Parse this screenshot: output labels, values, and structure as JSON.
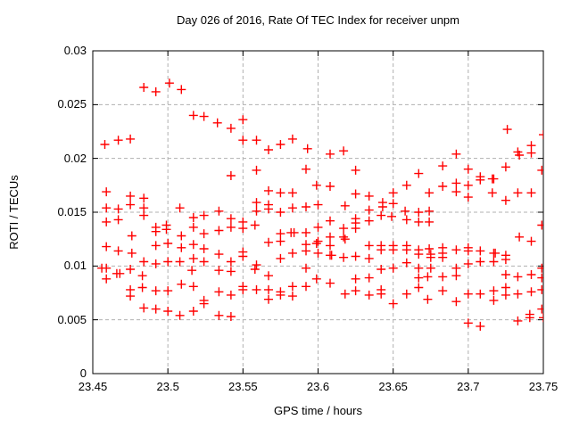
{
  "title": "Day 026 of 2016, Rate Of TEC Index for receiver unpm",
  "colors": {
    "background": "#ffffff",
    "axis": "#000000",
    "grid": "#b0b0b0",
    "marker": "#ff0000"
  },
  "chart_data": {
    "type": "scatter",
    "title": "Day 026 of 2016, Rate Of TEC Index for receiver unpm",
    "xlabel": "GPS time / hours",
    "ylabel": "ROTI / TECUs",
    "xlim": [
      23.45,
      23.75
    ],
    "ylim": [
      0,
      0.03
    ],
    "xticks": [
      23.45,
      23.5,
      23.55,
      23.6,
      23.65,
      23.7,
      23.75
    ],
    "xtick_labels": [
      "23.45",
      "23.5",
      "23.55",
      "23.6",
      "23.65",
      "23.7",
      "23.75"
    ],
    "yticks": [
      0,
      0.005,
      0.01,
      0.015,
      0.02,
      0.025,
      0.03
    ],
    "ytick_labels": [
      "0",
      "0.005",
      "0.01",
      "0.015",
      "0.02",
      "0.025",
      "0.03"
    ],
    "grid": true,
    "legend": false,
    "marker": "plus",
    "series": [
      {
        "name": "ROTI",
        "points": [
          [
            23.458,
            0.0213
          ],
          [
            23.467,
            0.0217
          ],
          [
            23.475,
            0.0218
          ],
          [
            23.484,
            0.0266
          ],
          [
            23.492,
            0.0262
          ],
          [
            23.501,
            0.027
          ],
          [
            23.509,
            0.0264
          ],
          [
            23.517,
            0.024
          ],
          [
            23.524,
            0.0239
          ],
          [
            23.533,
            0.0233
          ],
          [
            23.542,
            0.0228
          ],
          [
            23.55,
            0.0236
          ],
          [
            23.55,
            0.0217
          ],
          [
            23.559,
            0.0217
          ],
          [
            23.567,
            0.0208
          ],
          [
            23.575,
            0.0213
          ],
          [
            23.583,
            0.0218
          ],
          [
            23.593,
            0.0209
          ],
          [
            23.608,
            0.0204
          ],
          [
            23.617,
            0.0207
          ],
          [
            23.692,
            0.0204
          ],
          [
            23.726,
            0.0227
          ],
          [
            23.733,
            0.0206
          ],
          [
            23.734,
            0.0203
          ],
          [
            23.742,
            0.0212
          ],
          [
            23.742,
            0.0205
          ],
          [
            23.75,
            0.0222
          ],
          [
            23.459,
            0.0169
          ],
          [
            23.459,
            0.0154
          ],
          [
            23.459,
            0.0141
          ],
          [
            23.459,
            0.0118
          ],
          [
            23.467,
            0.0153
          ],
          [
            23.467,
            0.0143
          ],
          [
            23.467,
            0.0114
          ],
          [
            23.475,
            0.0165
          ],
          [
            23.475,
            0.0157
          ],
          [
            23.476,
            0.0128
          ],
          [
            23.476,
            0.0112
          ],
          [
            23.484,
            0.0163
          ],
          [
            23.484,
            0.0154
          ],
          [
            23.484,
            0.0147
          ],
          [
            23.484,
            0.0104
          ],
          [
            23.492,
            0.0136
          ],
          [
            23.492,
            0.0132
          ],
          [
            23.492,
            0.0119
          ],
          [
            23.492,
            0.0102
          ],
          [
            23.499,
            0.0138
          ],
          [
            23.499,
            0.0134
          ],
          [
            23.5,
            0.0121
          ],
          [
            23.5,
            0.0104
          ],
          [
            23.508,
            0.0154
          ],
          [
            23.509,
            0.0128
          ],
          [
            23.509,
            0.0117
          ],
          [
            23.508,
            0.0104
          ],
          [
            23.517,
            0.0145
          ],
          [
            23.517,
            0.0136
          ],
          [
            23.517,
            0.012
          ],
          [
            23.517,
            0.0107
          ],
          [
            23.524,
            0.0147
          ],
          [
            23.524,
            0.013
          ],
          [
            23.524,
            0.0116
          ],
          [
            23.524,
            0.0104
          ],
          [
            23.542,
            0.0184
          ],
          [
            23.559,
            0.0189
          ],
          [
            23.592,
            0.019
          ],
          [
            23.567,
            0.017
          ],
          [
            23.575,
            0.0168
          ],
          [
            23.583,
            0.0168
          ],
          [
            23.599,
            0.0175
          ],
          [
            23.534,
            0.0151
          ],
          [
            23.559,
            0.0159
          ],
          [
            23.559,
            0.0151
          ],
          [
            23.567,
            0.0157
          ],
          [
            23.567,
            0.0153
          ],
          [
            23.575,
            0.015
          ],
          [
            23.583,
            0.0154
          ],
          [
            23.592,
            0.0155
          ],
          [
            23.542,
            0.0144
          ],
          [
            23.542,
            0.0136
          ],
          [
            23.55,
            0.0141
          ],
          [
            23.55,
            0.0135
          ],
          [
            23.558,
            0.0138
          ],
          [
            23.534,
            0.0133
          ],
          [
            23.575,
            0.013
          ],
          [
            23.582,
            0.0131
          ],
          [
            23.584,
            0.0131
          ],
          [
            23.592,
            0.0131
          ],
          [
            23.567,
            0.0122
          ],
          [
            23.575,
            0.0123
          ],
          [
            23.592,
            0.012
          ],
          [
            23.599,
            0.0121
          ],
          [
            23.55,
            0.0113
          ],
          [
            23.55,
            0.0109
          ],
          [
            23.534,
            0.0111
          ],
          [
            23.542,
            0.0104
          ],
          [
            23.583,
            0.0112
          ],
          [
            23.592,
            0.0114
          ],
          [
            23.575,
            0.0107
          ],
          [
            23.559,
            0.0101
          ],
          [
            23.625,
            0.0189
          ],
          [
            23.667,
            0.0186
          ],
          [
            23.608,
            0.0174
          ],
          [
            23.659,
            0.0175
          ],
          [
            23.625,
            0.0167
          ],
          [
            23.634,
            0.0165
          ],
          [
            23.65,
            0.0168
          ],
          [
            23.674,
            0.0168
          ],
          [
            23.6,
            0.0157
          ],
          [
            23.618,
            0.0156
          ],
          [
            23.643,
            0.0159
          ],
          [
            23.643,
            0.0155
          ],
          [
            23.65,
            0.0158
          ],
          [
            23.634,
            0.0152
          ],
          [
            23.642,
            0.0147
          ],
          [
            23.649,
            0.0146
          ],
          [
            23.658,
            0.0151
          ],
          [
            23.659,
            0.0143
          ],
          [
            23.667,
            0.015
          ],
          [
            23.674,
            0.0151
          ],
          [
            23.667,
            0.0141
          ],
          [
            23.674,
            0.0141
          ],
          [
            23.608,
            0.0142
          ],
          [
            23.625,
            0.0144
          ],
          [
            23.625,
            0.014
          ],
          [
            23.634,
            0.0142
          ],
          [
            23.625,
            0.0135
          ],
          [
            23.617,
            0.0135
          ],
          [
            23.617,
            0.0127
          ],
          [
            23.618,
            0.0125
          ],
          [
            23.6,
            0.0136
          ],
          [
            23.608,
            0.0127
          ],
          [
            23.6,
            0.0123
          ],
          [
            23.608,
            0.0119
          ],
          [
            23.634,
            0.0119
          ],
          [
            23.642,
            0.0119
          ],
          [
            23.642,
            0.0115
          ],
          [
            23.65,
            0.0119
          ],
          [
            23.65,
            0.0115
          ],
          [
            23.659,
            0.0119
          ],
          [
            23.659,
            0.0115
          ],
          [
            23.667,
            0.0115
          ],
          [
            23.667,
            0.0111
          ],
          [
            23.674,
            0.0116
          ],
          [
            23.6,
            0.0112
          ],
          [
            23.608,
            0.011
          ],
          [
            23.609,
            0.011
          ],
          [
            23.617,
            0.0108
          ],
          [
            23.625,
            0.0109
          ],
          [
            23.634,
            0.0107
          ],
          [
            23.659,
            0.0103
          ],
          [
            23.683,
            0.0193
          ],
          [
            23.7,
            0.019
          ],
          [
            23.725,
            0.0192
          ],
          [
            23.749,
            0.0189
          ],
          [
            23.708,
            0.0183
          ],
          [
            23.708,
            0.018
          ],
          [
            23.716,
            0.0181
          ],
          [
            23.717,
            0.0181
          ],
          [
            23.683,
            0.0174
          ],
          [
            23.692,
            0.0177
          ],
          [
            23.7,
            0.0175
          ],
          [
            23.692,
            0.0169
          ],
          [
            23.7,
            0.0164
          ],
          [
            23.716,
            0.0168
          ],
          [
            23.733,
            0.0168
          ],
          [
            23.742,
            0.0168
          ],
          [
            23.725,
            0.0161
          ],
          [
            23.734,
            0.0127
          ],
          [
            23.742,
            0.0123
          ],
          [
            23.749,
            0.0138
          ],
          [
            23.683,
            0.0117
          ],
          [
            23.683,
            0.0112
          ],
          [
            23.683,
            0.0108
          ],
          [
            23.675,
            0.0111
          ],
          [
            23.675,
            0.0108
          ],
          [
            23.692,
            0.0115
          ],
          [
            23.7,
            0.0117
          ],
          [
            23.7,
            0.0114
          ],
          [
            23.708,
            0.0114
          ],
          [
            23.717,
            0.0112
          ],
          [
            23.718,
            0.0112
          ],
          [
            23.725,
            0.011
          ],
          [
            23.725,
            0.0106
          ],
          [
            23.708,
            0.0104
          ],
          [
            23.717,
            0.0104
          ],
          [
            23.456,
            0.0098
          ],
          [
            23.459,
            0.0098
          ],
          [
            23.459,
            0.0088
          ],
          [
            23.466,
            0.0093
          ],
          [
            23.468,
            0.0093
          ],
          [
            23.475,
            0.0097
          ],
          [
            23.483,
            0.0091
          ],
          [
            23.475,
            0.0078
          ],
          [
            23.475,
            0.0072
          ],
          [
            23.483,
            0.008
          ],
          [
            23.484,
            0.0061
          ],
          [
            23.492,
            0.0077
          ],
          [
            23.492,
            0.006
          ],
          [
            23.5,
            0.0077
          ],
          [
            23.5,
            0.0058
          ],
          [
            23.508,
            0.0054
          ],
          [
            23.509,
            0.0083
          ],
          [
            23.517,
            0.0081
          ],
          [
            23.517,
            0.0058
          ],
          [
            23.516,
            0.0096
          ],
          [
            23.534,
            0.0096
          ],
          [
            23.542,
            0.0095
          ],
          [
            23.558,
            0.0097
          ],
          [
            23.567,
            0.0091
          ],
          [
            23.592,
            0.0098
          ],
          [
            23.599,
            0.0088
          ],
          [
            23.55,
            0.0081
          ],
          [
            23.55,
            0.0078
          ],
          [
            23.534,
            0.0076
          ],
          [
            23.542,
            0.0073
          ],
          [
            23.559,
            0.0078
          ],
          [
            23.567,
            0.0078
          ],
          [
            23.567,
            0.0069
          ],
          [
            23.575,
            0.0076
          ],
          [
            23.575,
            0.0073
          ],
          [
            23.583,
            0.0081
          ],
          [
            23.583,
            0.0072
          ],
          [
            23.592,
            0.0081
          ],
          [
            23.534,
            0.0054
          ],
          [
            23.542,
            0.0053
          ],
          [
            23.524,
            0.0068
          ],
          [
            23.524,
            0.0065
          ],
          [
            23.608,
            0.0084
          ],
          [
            23.625,
            0.0088
          ],
          [
            23.634,
            0.0089
          ],
          [
            23.642,
            0.0097
          ],
          [
            23.65,
            0.0098
          ],
          [
            23.618,
            0.0074
          ],
          [
            23.625,
            0.0077
          ],
          [
            23.634,
            0.0073
          ],
          [
            23.642,
            0.0078
          ],
          [
            23.642,
            0.0074
          ],
          [
            23.65,
            0.0065
          ],
          [
            23.659,
            0.0074
          ],
          [
            23.667,
            0.0089
          ],
          [
            23.667,
            0.008
          ],
          [
            23.667,
            0.0098
          ],
          [
            23.673,
            0.009
          ],
          [
            23.673,
            0.0069
          ],
          [
            23.675,
            0.0098
          ],
          [
            23.683,
            0.009
          ],
          [
            23.692,
            0.0098
          ],
          [
            23.692,
            0.0091
          ],
          [
            23.7,
            0.0102
          ],
          [
            23.683,
            0.0077
          ],
          [
            23.7,
            0.0074
          ],
          [
            23.692,
            0.0067
          ],
          [
            23.708,
            0.0074
          ],
          [
            23.717,
            0.0077
          ],
          [
            23.717,
            0.0068
          ],
          [
            23.725,
            0.0092
          ],
          [
            23.725,
            0.008
          ],
          [
            23.725,
            0.0073
          ],
          [
            23.733,
            0.009
          ],
          [
            23.733,
            0.0074
          ],
          [
            23.733,
            0.0049
          ],
          [
            23.742,
            0.0092
          ],
          [
            23.742,
            0.0076
          ],
          [
            23.749,
            0.0098
          ],
          [
            23.749,
            0.0089
          ],
          [
            23.749,
            0.0078
          ],
          [
            23.749,
            0.006
          ],
          [
            23.7,
            0.0047
          ],
          [
            23.708,
            0.0044
          ],
          [
            23.741,
            0.0055
          ],
          [
            23.741,
            0.0052
          ],
          [
            23.75,
            0.0052
          ]
        ]
      }
    ]
  }
}
